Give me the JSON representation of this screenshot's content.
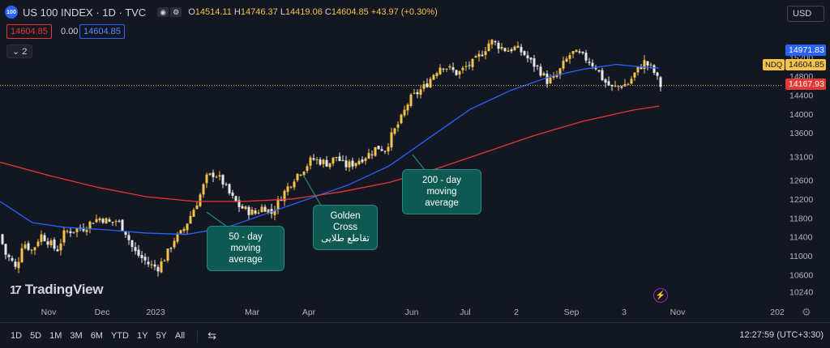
{
  "header": {
    "badge": "100",
    "title": "US 100 INDEX · 1D · TVC",
    "ohlc": {
      "o_label": "O",
      "o": "14514.11",
      "h_label": "H",
      "h": "14746.37",
      "l_label": "L",
      "l": "14419.06",
      "c_label": "C",
      "c": "14604.85",
      "change": "+43.97 (+0.30%)"
    },
    "sell_price": "14604.85",
    "spread": "0.00",
    "buy_price": "14604.85",
    "indicators_toggle": "2"
  },
  "currency": "USD",
  "price_tags": {
    "ma50": "14971.83",
    "last": "14604.85",
    "ma200": "14167.93",
    "symbol": "NDQ"
  },
  "callouts": {
    "ma50": [
      "50 - day",
      "moving average"
    ],
    "golden": [
      "Golden Cross",
      "تقاطع طلایی"
    ],
    "ma200": [
      "200 - day",
      "moving average"
    ]
  },
  "logo": "TradingView",
  "bottom": {
    "ranges": [
      "1D",
      "5D",
      "1M",
      "3M",
      "6M",
      "YTD",
      "1Y",
      "5Y",
      "All"
    ],
    "clock": "12:27:59 (UTC+3:30)"
  },
  "colors": {
    "background": "#131722",
    "candle_up": "#f5c24b",
    "candle_down": "#e8e8e8",
    "ma50": "#2962ff",
    "ma200": "#e53935",
    "callout": "#0e5a52"
  },
  "chart_data": {
    "type": "candlestick",
    "title": "US 100 INDEX · 1D · TVC",
    "y_ticks": [
      15200,
      14800,
      14400,
      14000,
      13600,
      13100,
      12600,
      12200,
      11800,
      11400,
      11000,
      10600,
      10240
    ],
    "x_ticks": [
      "Nov",
      "Dec",
      "2023",
      "Mar",
      "Apr",
      "Jun",
      "Jul",
      "2",
      "Sep",
      "3",
      "Nov",
      "202"
    ],
    "ylim": [
      10040,
      15900
    ],
    "last_price": 14604.85,
    "series": [
      {
        "name": "Price",
        "close_path": [
          [
            0,
            11450
          ],
          [
            6,
            11050
          ],
          [
            14,
            10900
          ],
          [
            20,
            10700
          ],
          [
            28,
            11300
          ],
          [
            40,
            11100
          ],
          [
            50,
            11450
          ],
          [
            60,
            11300
          ],
          [
            70,
            11100
          ],
          [
            80,
            11500
          ],
          [
            92,
            11550
          ],
          [
            105,
            11600
          ],
          [
            115,
            11750
          ],
          [
            125,
            11800
          ],
          [
            135,
            11700
          ],
          [
            145,
            11750
          ],
          [
            155,
            11500
          ],
          [
            165,
            11100
          ],
          [
            175,
            10950
          ],
          [
            185,
            10800
          ],
          [
            195,
            10750
          ],
          [
            205,
            11000
          ],
          [
            215,
            11350
          ],
          [
            225,
            11500
          ],
          [
            235,
            11850
          ],
          [
            245,
            12200
          ],
          [
            255,
            12650
          ],
          [
            265,
            12750
          ],
          [
            275,
            12550
          ],
          [
            285,
            12250
          ],
          [
            295,
            12050
          ],
          [
            305,
            11950
          ],
          [
            315,
            11900
          ],
          [
            325,
            12050
          ],
          [
            335,
            11900
          ],
          [
            345,
            12200
          ],
          [
            355,
            12450
          ],
          [
            365,
            12700
          ],
          [
            375,
            12850
          ],
          [
            385,
            13050
          ],
          [
            395,
            13000
          ],
          [
            405,
            12950
          ],
          [
            415,
            13100
          ],
          [
            425,
            12900
          ],
          [
            435,
            12950
          ],
          [
            445,
            13050
          ],
          [
            455,
            13150
          ],
          [
            465,
            13300
          ],
          [
            475,
            13250
          ],
          [
            485,
            13600
          ],
          [
            495,
            13900
          ],
          [
            505,
            14300
          ],
          [
            515,
            14450
          ],
          [
            525,
            14600
          ],
          [
            535,
            14850
          ],
          [
            545,
            15050
          ],
          [
            555,
            14950
          ],
          [
            565,
            14850
          ],
          [
            575,
            15000
          ],
          [
            585,
            15100
          ],
          [
            595,
            15300
          ],
          [
            605,
            15550
          ],
          [
            615,
            15450
          ],
          [
            625,
            15350
          ],
          [
            635,
            15400
          ],
          [
            645,
            15300
          ],
          [
            655,
            15100
          ],
          [
            665,
            14950
          ],
          [
            675,
            14700
          ],
          [
            685,
            14750
          ],
          [
            695,
            15050
          ],
          [
            705,
            15300
          ],
          [
            715,
            15250
          ],
          [
            725,
            15150
          ],
          [
            735,
            15000
          ],
          [
            745,
            14700
          ],
          [
            755,
            14550
          ],
          [
            765,
            14600
          ],
          [
            775,
            14650
          ],
          [
            785,
            14900
          ],
          [
            795,
            15100
          ],
          [
            805,
            14950
          ],
          [
            815,
            14600
          ]
        ]
      },
      {
        "name": "50-day MA",
        "values": [
          [
            0,
            12150
          ],
          [
            40,
            11700
          ],
          [
            80,
            11600
          ],
          [
            130,
            11550
          ],
          [
            180,
            11480
          ],
          [
            230,
            11450
          ],
          [
            280,
            11600
          ],
          [
            330,
            11900
          ],
          [
            380,
            12200
          ],
          [
            430,
            12500
          ],
          [
            480,
            12900
          ],
          [
            530,
            13500
          ],
          [
            580,
            14100
          ],
          [
            630,
            14500
          ],
          [
            680,
            14800
          ],
          [
            720,
            14950
          ],
          [
            760,
            15050
          ],
          [
            790,
            15000
          ],
          [
            813,
            14972
          ]
        ]
      },
      {
        "name": "200-day MA",
        "values": [
          [
            0,
            12980
          ],
          [
            60,
            12700
          ],
          [
            120,
            12450
          ],
          [
            180,
            12250
          ],
          [
            240,
            12150
          ],
          [
            300,
            12150
          ],
          [
            360,
            12200
          ],
          [
            420,
            12350
          ],
          [
            480,
            12550
          ],
          [
            540,
            12850
          ],
          [
            600,
            13200
          ],
          [
            660,
            13550
          ],
          [
            720,
            13850
          ],
          [
            780,
            14080
          ],
          [
            813,
            14168
          ]
        ]
      }
    ]
  }
}
